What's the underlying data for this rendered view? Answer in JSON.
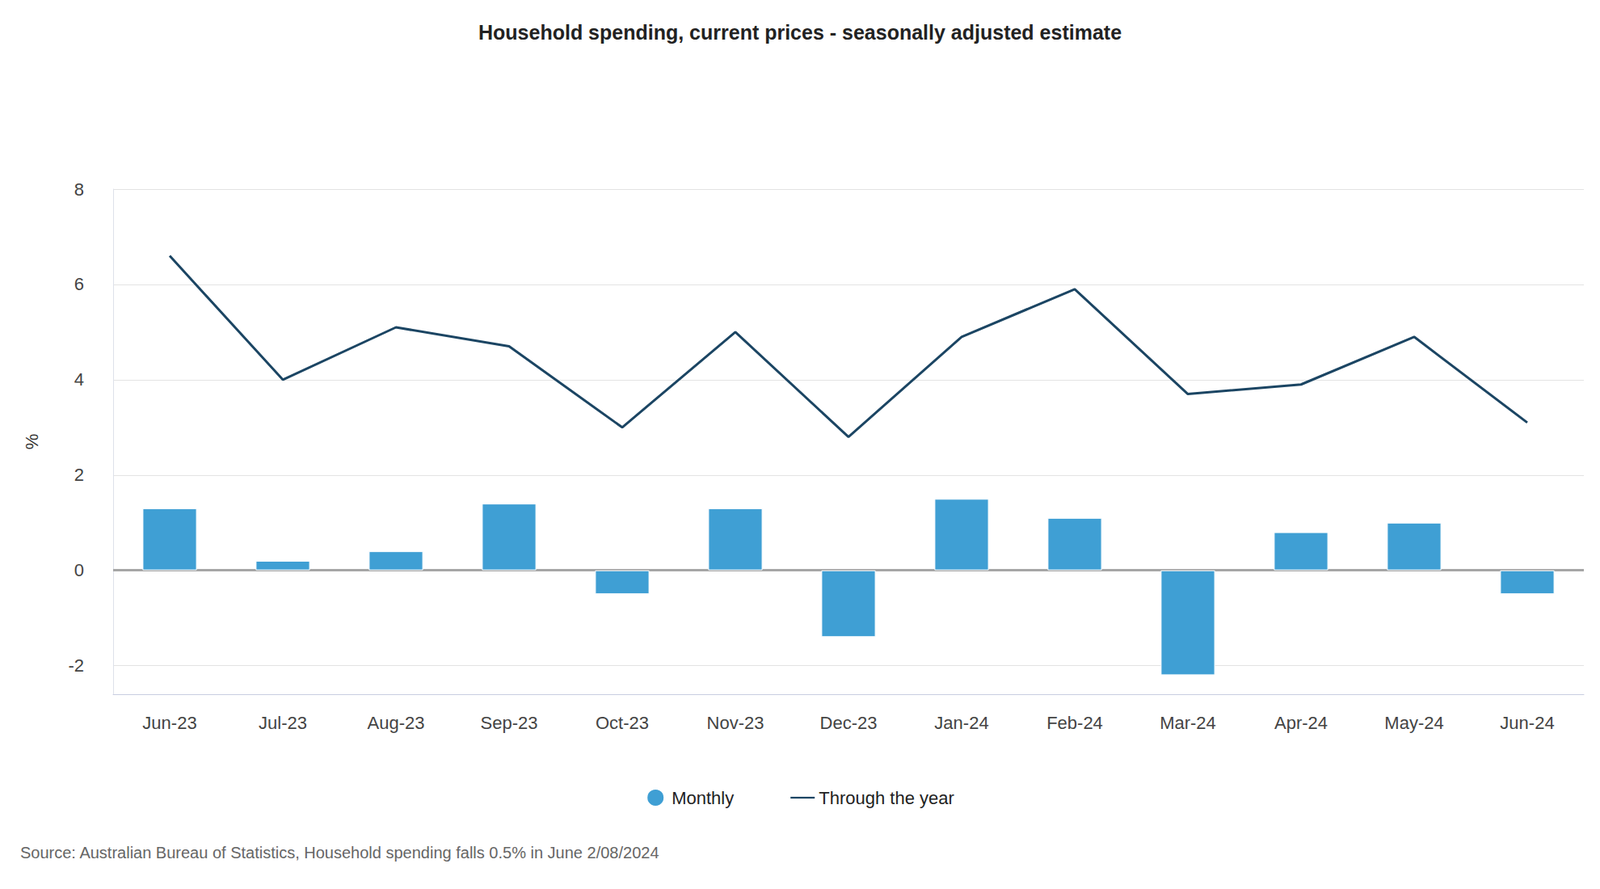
{
  "chart_data": {
    "type": "bar",
    "title": "Household spending, current prices - seasonally adjusted estimate",
    "source": "Source: Australian Bureau of Statistics, Household spending falls 0.5% in June 2/08/2024",
    "y_label": "%",
    "categories": [
      "Jun-23",
      "Jul-23",
      "Aug-23",
      "Sep-23",
      "Oct-23",
      "Nov-23",
      "Dec-23",
      "Jan-24",
      "Feb-24",
      "Mar-24",
      "Apr-24",
      "May-24",
      "Jun-24"
    ],
    "series": [
      {
        "name": "Monthly",
        "type": "bar",
        "color": "#3f9fd4",
        "values": [
          1.3,
          0.2,
          0.4,
          1.4,
          -0.5,
          1.3,
          -1.4,
          1.5,
          1.1,
          -2.2,
          0.8,
          1.0,
          -0.5
        ]
      },
      {
        "name": "Through the year",
        "type": "line",
        "color": "#1b4563",
        "marker": "none",
        "values": [
          6.6,
          4.0,
          5.1,
          4.7,
          3.0,
          5.0,
          2.8,
          4.9,
          5.9,
          3.7,
          3.9,
          4.9,
          3.1
        ]
      }
    ],
    "ylim": [
      -2.6,
      8
    ],
    "yticks": [
      -2,
      0,
      2,
      4,
      6,
      8
    ],
    "grid": true,
    "legend": "bottom"
  }
}
